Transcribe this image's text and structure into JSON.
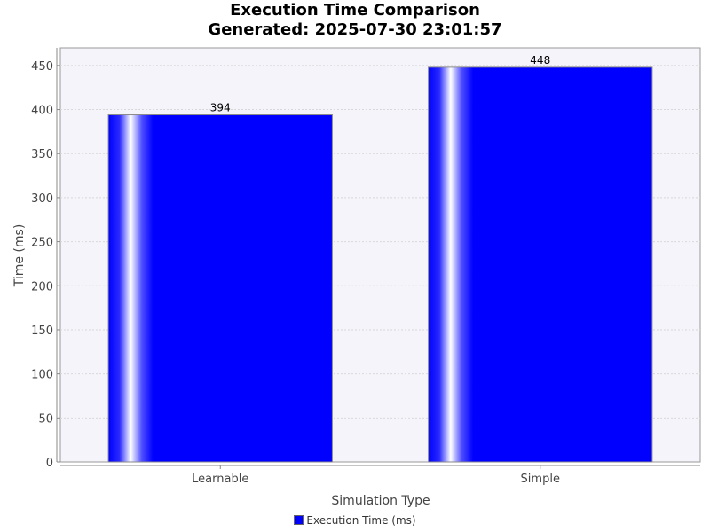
{
  "chart_data": {
    "type": "bar",
    "title": "Execution Time Comparison",
    "subtitle": "Generated: 2025-07-30 23:01:57",
    "xlabel": "Simulation Type",
    "ylabel": "Time (ms)",
    "categories": [
      "Learnable",
      "Simple"
    ],
    "series": [
      {
        "name": "Execution Time (ms)",
        "values": [
          394,
          448
        ],
        "color": "#0000ff"
      }
    ],
    "ylim": [
      0,
      470
    ],
    "yticks": [
      0,
      50,
      100,
      150,
      200,
      250,
      300,
      350,
      400,
      450
    ],
    "grid": true,
    "legend_position": "bottom",
    "plot_background": "#f4f4fa"
  }
}
